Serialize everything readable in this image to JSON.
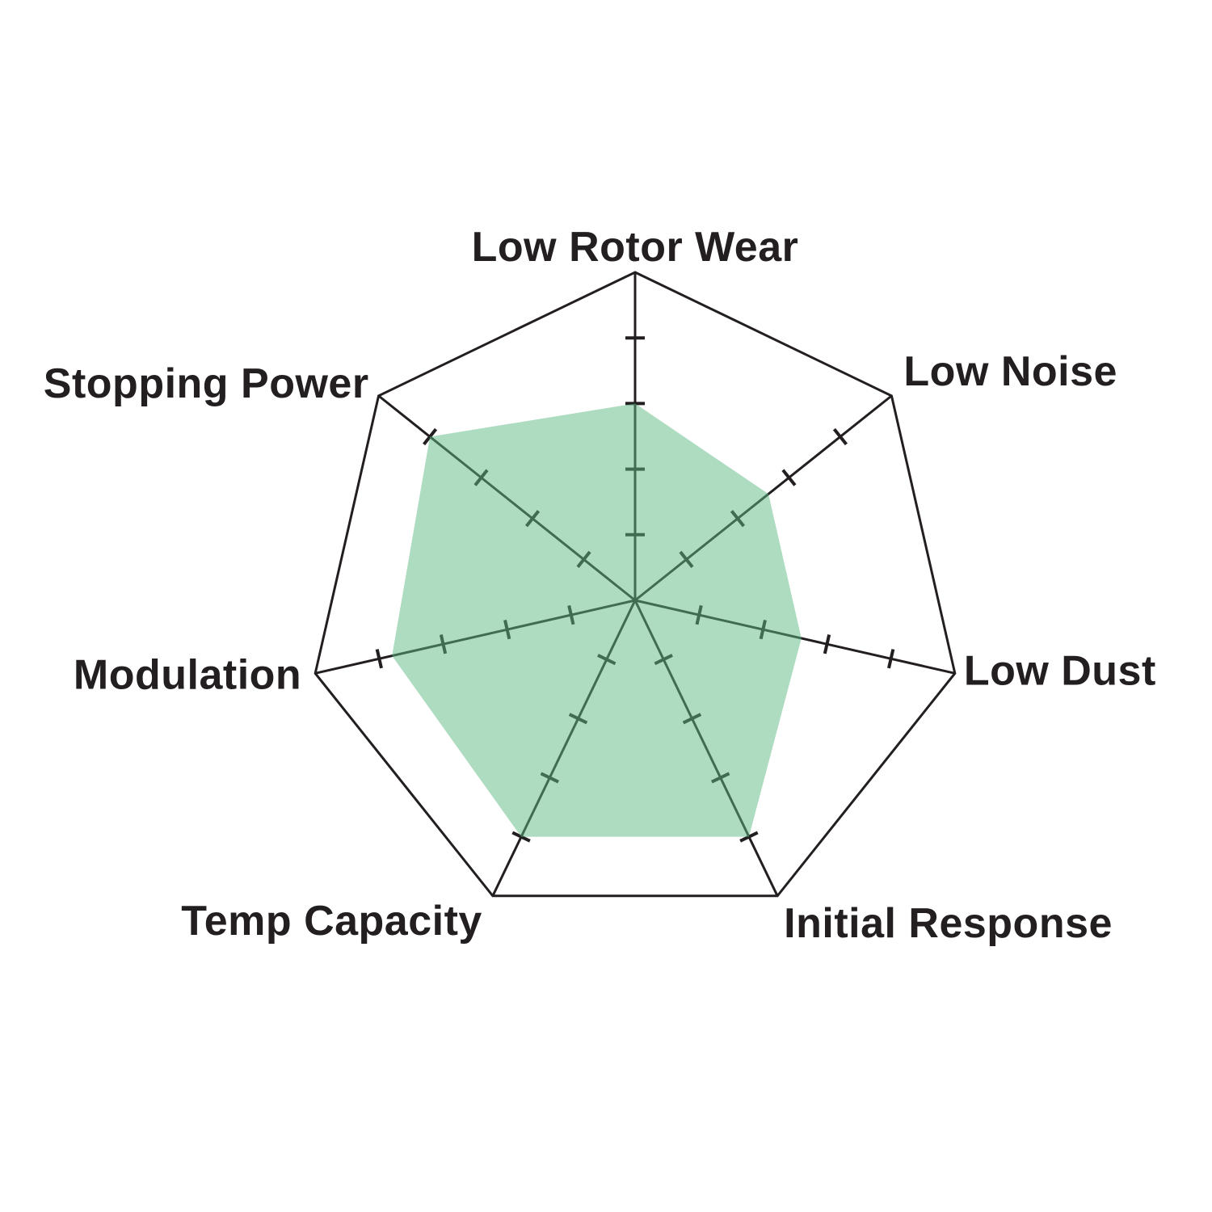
{
  "chart_data": {
    "type": "radar",
    "categories": [
      "Low Rotor Wear",
      "Low Noise",
      "Low Dust",
      "Initial Response",
      "Temp Capacity",
      "Modulation",
      "Stopping Power"
    ],
    "values": [
      3.0,
      2.6,
      2.6,
      4.0,
      4.0,
      3.8,
      4.0
    ],
    "scale": {
      "min": 0,
      "max": 5,
      "tick_interval": 1,
      "tick_positions_shown": [
        1,
        2,
        3,
        4
      ]
    },
    "axes_count": 7,
    "start_axis": "top",
    "direction": "clockwise",
    "grid": "axis-ticks-only",
    "legend": "none",
    "colors": {
      "axis_line": "#231F20",
      "outer_polygon": "#231F20",
      "label_text": "#231F20",
      "fill": "#5DB983",
      "fill_opacity": 0.5
    }
  }
}
